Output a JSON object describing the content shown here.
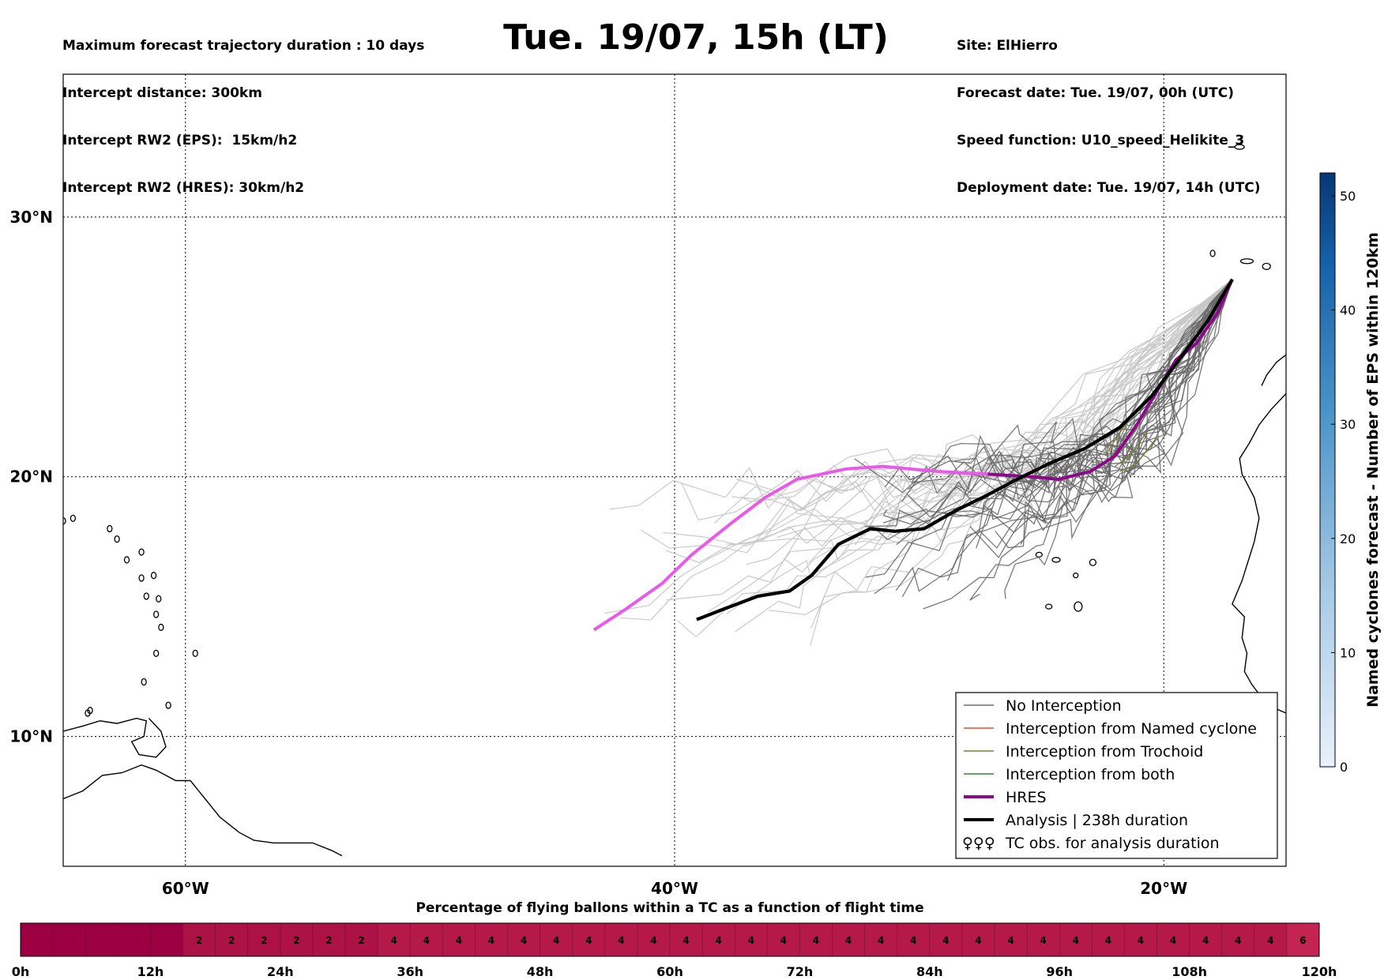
{
  "header": {
    "left_lines": [
      "Maximum forecast trajectory duration : 10 days",
      "Intercept distance: 300km",
      "Intercept RW2 (EPS):  15km/h2",
      "Intercept RW2 (HRES): 30km/h2"
    ],
    "title": "Tue. 19/07, 15h (LT)",
    "right_lines": [
      "Site: ElHierro",
      "Forecast date: Tue. 19/07, 00h (UTC)",
      "Speed function: U10_speed_Helikite_3",
      "Deployment date: Tue. 19/07, 14h (UTC)"
    ]
  },
  "chart_data": [
    {
      "type": "line",
      "subtype": "trajectory map",
      "xlim": [
        -65,
        -15
      ],
      "ylim": [
        5,
        35.5
      ],
      "x_ticks": [
        {
          "value": -60,
          "label": "60°W"
        },
        {
          "value": -40,
          "label": "40°W"
        },
        {
          "value": -20,
          "label": "20°W"
        }
      ],
      "y_ticks": [
        {
          "value": 10,
          "label": "10°N"
        },
        {
          "value": 20,
          "label": "20°N"
        },
        {
          "value": 30,
          "label": "30°N"
        }
      ],
      "grid": "dotted",
      "legend_position": "bottom-right",
      "legend": [
        {
          "label": "No Interception",
          "color": "#6f6f6f",
          "style": "thin"
        },
        {
          "label": "Interception from Named cyclone",
          "color": "#e8502a",
          "style": "thin"
        },
        {
          "label": "Interception from Trochoid",
          "color": "#7f7f2a",
          "style": "thin"
        },
        {
          "label": "Interception from both",
          "color": "#2a8a2a",
          "style": "thin"
        },
        {
          "label": "HRES",
          "color": "#8b0a8b",
          "style": "thick"
        },
        {
          "label": "Analysis | 238h duration",
          "color": "#000000",
          "style": "thick"
        },
        {
          "label": "TC obs. for analysis duration",
          "color": "#000000",
          "style": "symbol"
        }
      ],
      "series": [
        {
          "name": "HRES",
          "points": [
            [
              -17.2,
              27.6
            ],
            [
              -17.8,
              26.3
            ],
            [
              -18.7,
              25.1
            ],
            [
              -19.5,
              24.5
            ],
            [
              -20.4,
              23.1
            ],
            [
              -21.1,
              22.0
            ],
            [
              -22.0,
              20.8
            ],
            [
              -23.0,
              20.2
            ],
            [
              -24.3,
              19.9
            ],
            [
              -25.4,
              20.0
            ],
            [
              -27.2,
              20.1
            ],
            [
              -29.2,
              20.2
            ],
            [
              -31.5,
              20.4
            ],
            [
              -33.0,
              20.3
            ],
            [
              -35.0,
              19.9
            ],
            [
              -36.3,
              19.2
            ],
            [
              -37.7,
              18.2
            ],
            [
              -39.3,
              17.0
            ],
            [
              -40.5,
              15.9
            ],
            [
              -42.0,
              14.9
            ],
            [
              -43.3,
              14.1
            ]
          ]
        },
        {
          "name": "Analysis | 238h duration",
          "points": [
            [
              -17.2,
              27.6
            ],
            [
              -18.2,
              26.0
            ],
            [
              -19.3,
              24.6
            ],
            [
              -20.5,
              23.1
            ],
            [
              -21.8,
              21.9
            ],
            [
              -23.2,
              21.1
            ],
            [
              -24.7,
              20.5
            ],
            [
              -26.0,
              19.9
            ],
            [
              -27.2,
              19.3
            ],
            [
              -28.5,
              18.7
            ],
            [
              -29.8,
              18.0
            ],
            [
              -31.0,
              17.9
            ],
            [
              -32.0,
              18.0
            ],
            [
              -33.3,
              17.4
            ],
            [
              -34.4,
              16.2
            ],
            [
              -35.3,
              15.6
            ],
            [
              -36.6,
              15.4
            ],
            [
              -38.0,
              14.9
            ],
            [
              -39.1,
              14.5
            ]
          ]
        }
      ]
    },
    {
      "type": "heatmap",
      "title": "Percentage of flying ballons within a TC as a function of flight time",
      "x_labels": [
        "0h",
        "12h",
        "24h",
        "36h",
        "48h",
        "60h",
        "72h",
        "84h",
        "96h",
        "108h",
        "120h"
      ],
      "hours": [
        0,
        3,
        6,
        9,
        12,
        15,
        18,
        21,
        24,
        27,
        30,
        33,
        36,
        39,
        42,
        45,
        48,
        51,
        54,
        57,
        60,
        63,
        66,
        69,
        72,
        75,
        78,
        81,
        84,
        87,
        90,
        93,
        96,
        99,
        102,
        105,
        108,
        111,
        114,
        117
      ],
      "values": [
        "",
        "",
        "",
        "",
        "",
        "2",
        "2",
        "2",
        "2",
        "2",
        "2",
        "4",
        "4",
        "4",
        "4",
        "4",
        "4",
        "4",
        "4",
        "4",
        "4",
        "4",
        "4",
        "4",
        "4",
        "4",
        "4",
        "4",
        "4",
        "4",
        "4",
        "4",
        "4",
        "4",
        "4",
        "4",
        "4",
        "4",
        "4",
        "6"
      ],
      "colors": {
        "empty": "#9d0040",
        "2": "#ac1245",
        "4": "#b4194a",
        "6": "#c42452"
      }
    },
    {
      "type": "colorbar",
      "label": "Named cyclones forecast - Number of EPS within 120km",
      "range": [
        0,
        52
      ],
      "ticks": [
        0,
        10,
        20,
        30,
        40,
        50
      ]
    }
  ]
}
